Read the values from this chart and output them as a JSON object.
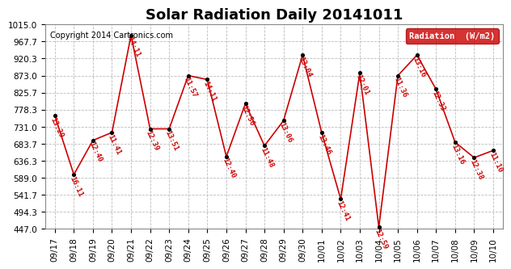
{
  "title": "Solar Radiation Daily 20141011",
  "copyright": "Copyright 2014 Cartronics.com",
  "legend_label": "Radiation  (W/m2)",
  "dates": [
    "09/17",
    "09/18",
    "09/19",
    "09/20",
    "09/21",
    "09/22",
    "09/23",
    "09/24",
    "09/25",
    "09/26",
    "09/27",
    "09/28",
    "09/29",
    "09/30",
    "10/01",
    "10/02",
    "10/03",
    "10/04",
    "10/05",
    "10/06",
    "10/07",
    "10/08",
    "10/09",
    "10/10"
  ],
  "values": [
    762,
    598,
    693,
    715,
    985,
    725,
    725,
    873,
    862,
    648,
    795,
    678,
    748,
    930,
    715,
    530,
    880,
    452,
    873,
    930,
    835,
    688,
    645,
    665
  ],
  "labels": [
    "13:29",
    "16:11",
    "12:40",
    "11:41",
    "14:11",
    "12:39",
    "13:51",
    "11:57",
    "14:11",
    "12:40",
    "12:56",
    "11:48",
    "13:06",
    "13:04",
    "13:46",
    "12:41",
    "12:01",
    "12:59",
    "11:36",
    "13:16",
    "12:33",
    "13:16",
    "12:38",
    "11:10"
  ],
  "y_ticks": [
    447.0,
    494.3,
    541.7,
    589.0,
    636.3,
    683.7,
    731.0,
    778.3,
    825.7,
    873.0,
    920.3,
    967.7,
    1015.0
  ],
  "ymin": 447.0,
  "ymax": 1015.0,
  "line_color": "#cc0000",
  "dot_color": "#000000",
  "label_color": "#cc0000",
  "bg_color": "#ffffff",
  "grid_color": "#bbbbbb",
  "legend_bg": "#cc0000",
  "legend_text_color": "#ffffff",
  "title_fontsize": 13,
  "copyright_fontsize": 7,
  "label_fontsize": 6.5,
  "tick_fontsize": 7.5
}
